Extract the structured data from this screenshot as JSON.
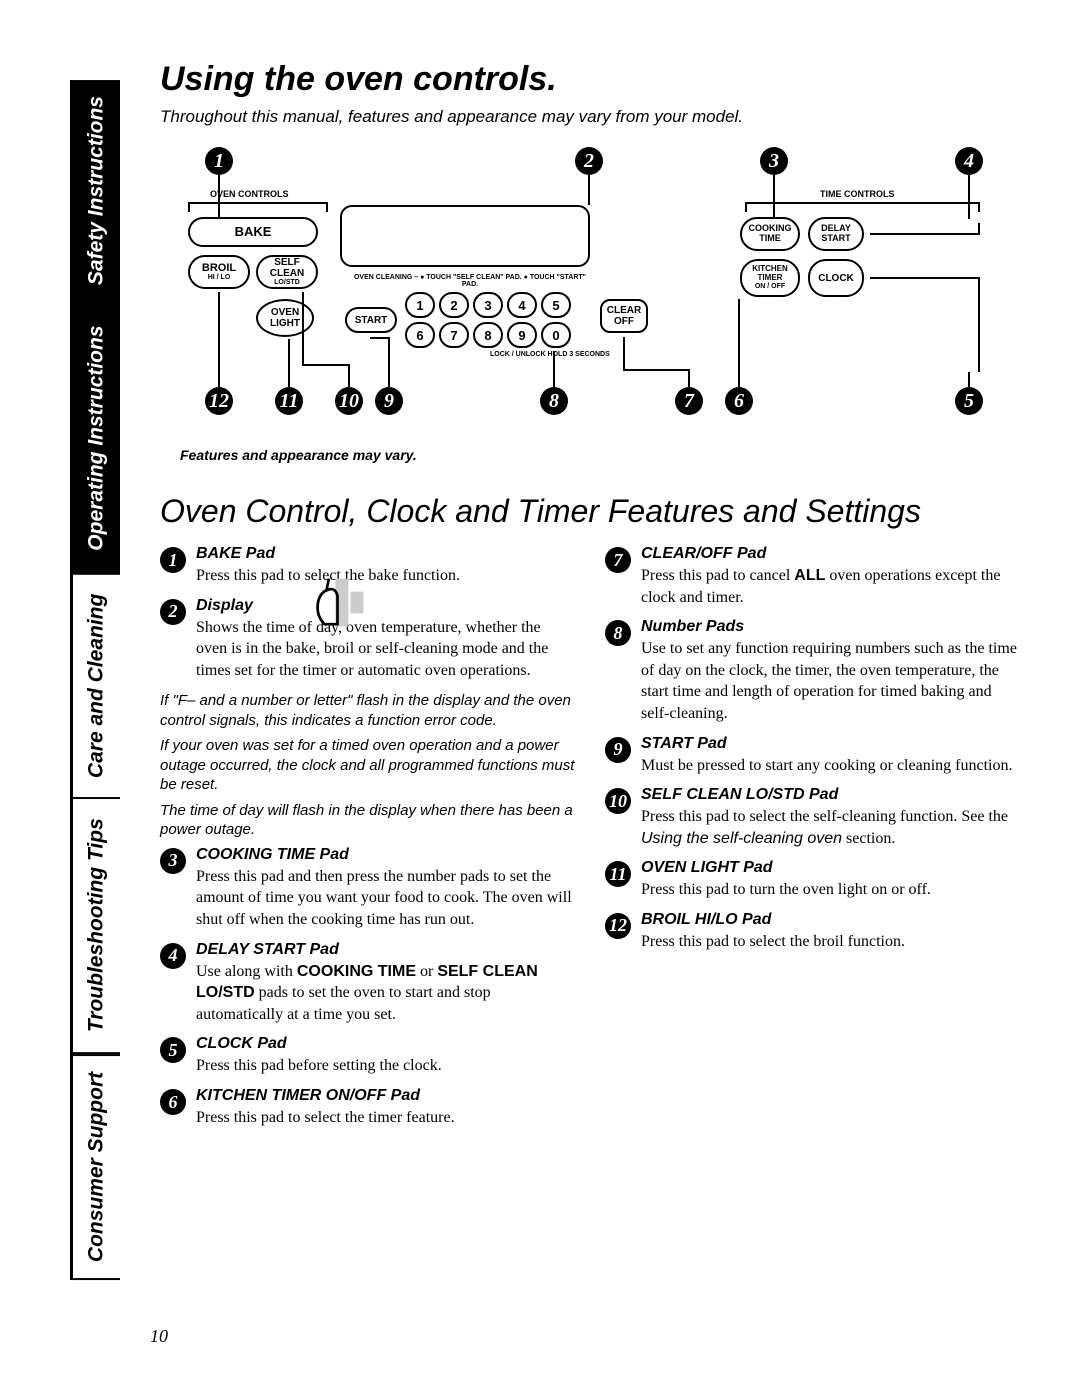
{
  "sidebar": {
    "tabs": [
      {
        "label": "Safety Instructions",
        "style": "black"
      },
      {
        "label": "Operating Instructions",
        "style": "black"
      },
      {
        "label": "Care and Cleaning",
        "style": "white"
      },
      {
        "label": "Troubleshooting Tips",
        "style": "white"
      },
      {
        "label": "Consumer Support",
        "style": "white"
      }
    ]
  },
  "title": "Using the oven controls.",
  "subtitle": "Throughout this manual, features and appearance may vary from your model.",
  "diagram": {
    "oven_controls_label": "OVEN  CONTROLS",
    "time_controls_label": "TIME  CONTROLS",
    "buttons": {
      "bake": "BAKE",
      "broil": "BROIL",
      "broil_sub": "HI / LO",
      "self_clean": "SELF CLEAN",
      "self_clean_sub": "LO/STD",
      "oven_light": "OVEN LIGHT",
      "start": "START",
      "clear_off": "CLEAR OFF",
      "cooking_time": "COOKING TIME",
      "delay_start": "DELAY START",
      "kitchen_timer": "KITCHEN TIMER",
      "kitchen_timer_sub": "ON / OFF",
      "clock": "CLOCK"
    },
    "cleaning_text": "OVEN CLEANING –  ● TOUCH \"SELF CLEAN\" PAD.  ● TOUCH \"START\" PAD.",
    "lock_text": "LOCK / UNLOCK  HOLD  3  SECONDS",
    "keypad_top": [
      "1",
      "2",
      "3",
      "4",
      "5"
    ],
    "keypad_bottom": [
      "6",
      "7",
      "8",
      "9",
      "0"
    ],
    "callouts_top": [
      "1",
      "2",
      "3",
      "4"
    ],
    "callouts_bottom": [
      "12",
      "11",
      "10",
      "9",
      "8",
      "7",
      "6",
      "5"
    ]
  },
  "diagram_note": "Features and appearance may vary.",
  "section_title": "Oven Control, Clock and Timer Features and Settings",
  "left_col": [
    {
      "n": "1",
      "label": "BAKE Pad",
      "desc": "Press this pad to select the bake function."
    },
    {
      "n": "2",
      "label": "Display",
      "desc": "Shows the time of day, oven temperature, whether the oven is in the bake, broil or self-cleaning mode and the times set for the timer or automatic oven operations."
    }
  ],
  "left_notes": [
    "If \"F– and a number or letter\" flash in the display and the oven control signals, this indicates a function error code.",
    "If your oven was set for a timed oven operation and a power outage occurred, the clock and all programmed functions must be reset.",
    "The time of day will flash in the display when there has been a power outage."
  ],
  "left_col2": [
    {
      "n": "3",
      "label": "COOKING TIME Pad",
      "desc": "Press this pad and then press the number pads to set the amount of time you want your food to cook. The oven will shut off when the cooking time has run out."
    },
    {
      "n": "4",
      "label": "DELAY START Pad",
      "desc_html": "Use along with <b class='sans'>COOKING TIME</b> or <b class='sans'>SELF CLEAN LO/STD</b> pads to set the oven to start and stop automatically at a time you set."
    },
    {
      "n": "5",
      "label": "CLOCK Pad",
      "desc": "Press this pad before setting the clock."
    },
    {
      "n": "6",
      "label": "KITCHEN TIMER ON/OFF Pad",
      "desc": "Press this pad to select the timer feature."
    }
  ],
  "right_col": [
    {
      "n": "7",
      "label": "CLEAR/OFF Pad",
      "desc_html": "Press this pad to cancel <b class='sans'>ALL</b> oven operations except the clock and timer."
    },
    {
      "n": "8",
      "label": "Number Pads",
      "desc": "Use to set any function requiring numbers such as the time of day on the clock, the timer, the oven temperature, the start time and length of operation for timed baking and self-cleaning."
    },
    {
      "n": "9",
      "label": "START Pad",
      "desc": "Must be pressed to start any cooking or cleaning function."
    },
    {
      "n": "10",
      "label": "SELF CLEAN LO/STD Pad",
      "desc_html": "Press this pad to select the self-cleaning function. See the <i class='sans'>Using the self-cleaning oven</i> section."
    },
    {
      "n": "11",
      "label": "OVEN LIGHT Pad",
      "desc": "Press this pad to turn the oven light on or off."
    },
    {
      "n": "12",
      "label": "BROIL HI/LO Pad",
      "desc": "Press this pad to select the broil function."
    }
  ],
  "page_number": "10",
  "colors": {
    "bg": "#ffffff",
    "ink": "#000000"
  }
}
